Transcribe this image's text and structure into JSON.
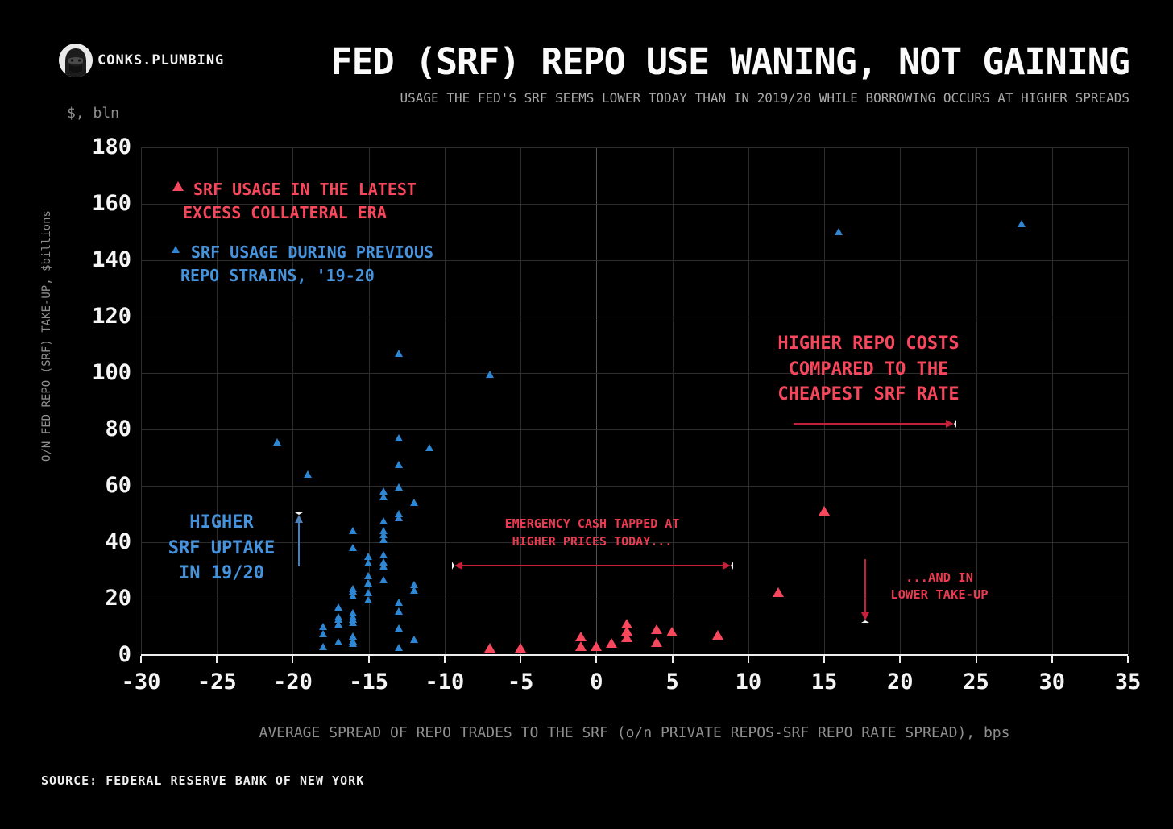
{
  "header": {
    "brand": "CONKS.PLUMBING",
    "title": "FED (SRF) REPO USE WANING, NOT GAINING",
    "subtitle": "USAGE THE FED'S SRF SEEMS LOWER TODAY THAN IN 2019/20 WHILE BORROWING OCCURS AT HIGHER SPREADS"
  },
  "colors": {
    "background": "#000000",
    "red": "#f7475c",
    "blue": "#2e87d4",
    "blue_text": "#4693dd",
    "grid": "#2d2d2d",
    "zero_line": "#555555",
    "axis": "#ededed",
    "muted_text": "#8f8f8f"
  },
  "chart_data": {
    "type": "scatter",
    "title": "FED (SRF) REPO USE WANING, NOT GAINING",
    "subtitle": "USAGE THE FED'S SRF SEEMS LOWER TODAY THAN IN 2019/20 WHILE BORROWING OCCURS AT HIGHER SPREADS",
    "xlabel": "AVERAGE SPREAD OF REPO TRADES TO THE SRF (o/n PRIVATE REPOS-SRF REPO RATE SPREAD), bps",
    "ylabel": "O/N FED REPO (SRF) TAKE-UP, $billions",
    "y_unit_label": "$, bln",
    "xlim": [
      -30,
      35
    ],
    "ylim": [
      0,
      180
    ],
    "x_ticks": [
      -30,
      -25,
      -20,
      -15,
      -10,
      -5,
      0,
      5,
      10,
      15,
      20,
      25,
      30,
      35
    ],
    "y_ticks": [
      0,
      20,
      40,
      60,
      80,
      100,
      120,
      140,
      160,
      180
    ],
    "grid": true,
    "legend_position": "upper-left",
    "series": [
      {
        "name": "SRF USAGE IN THE LATEST EXCESS COLLATERAL ERA",
        "color": "#f7475c",
        "marker": "triangle-up",
        "marker_size": 15,
        "points": [
          [
            -7,
            2.5
          ],
          [
            -5,
            2.5
          ],
          [
            -1,
            6.5
          ],
          [
            -1,
            3
          ],
          [
            0,
            3
          ],
          [
            1,
            4
          ],
          [
            2,
            11
          ],
          [
            2,
            8.5
          ],
          [
            2,
            6
          ],
          [
            4,
            9
          ],
          [
            4,
            4.5
          ],
          [
            5,
            8
          ],
          [
            8,
            7
          ],
          [
            12,
            22
          ],
          [
            15,
            51
          ]
        ]
      },
      {
        "name": "SRF USAGE DURING PREVIOUS REPO STRAINS, '19-20",
        "color": "#2e87d4",
        "marker": "triangle-up",
        "marker_size": 11,
        "points": [
          [
            -21,
            75.5
          ],
          [
            -19,
            64
          ],
          [
            -13,
            107
          ],
          [
            -7,
            99.5
          ],
          [
            16,
            150
          ],
          [
            28,
            153
          ],
          [
            -13,
            77
          ],
          [
            -11,
            73.5
          ],
          [
            -13,
            67.5
          ],
          [
            -14,
            58
          ],
          [
            -14,
            56
          ],
          [
            -13,
            59.5
          ],
          [
            -12,
            54
          ],
          [
            -13,
            50
          ],
          [
            -13,
            48.5
          ],
          [
            -14,
            47.5
          ],
          [
            -16,
            44
          ],
          [
            -14,
            44
          ],
          [
            -14,
            42.5
          ],
          [
            -14,
            41
          ],
          [
            -16,
            38
          ],
          [
            -15,
            35
          ],
          [
            -14,
            35.5
          ],
          [
            -15,
            32.5
          ],
          [
            -14,
            33
          ],
          [
            -14,
            31.5
          ],
          [
            -15,
            28
          ],
          [
            -14,
            26.5
          ],
          [
            -15,
            25.5
          ],
          [
            -16,
            23.5
          ],
          [
            -16,
            22.5
          ],
          [
            -16,
            21
          ],
          [
            -15,
            22
          ],
          [
            -15,
            19.5
          ],
          [
            -12,
            25
          ],
          [
            -12,
            23
          ],
          [
            -13,
            18.5
          ],
          [
            -13,
            15.5
          ],
          [
            -17,
            17
          ],
          [
            -17,
            13.5
          ],
          [
            -17,
            12.5
          ],
          [
            -17,
            11
          ],
          [
            -16,
            15
          ],
          [
            -16,
            13.5
          ],
          [
            -16,
            12.5
          ],
          [
            -16,
            11.5
          ],
          [
            -18,
            10
          ],
          [
            -18,
            7.5
          ],
          [
            -13,
            9.5
          ],
          [
            -12,
            5.5
          ],
          [
            -17,
            4.5
          ],
          [
            -16,
            6.5
          ],
          [
            -16,
            5
          ],
          [
            -16,
            4
          ],
          [
            -18,
            3
          ],
          [
            -13,
            2.5
          ]
        ]
      }
    ]
  },
  "legend": {
    "red": {
      "lines": [
        "SRF USAGE IN THE LATEST",
        "EXCESS COLLATERAL ERA"
      ]
    },
    "blue": {
      "lines": [
        "SRF USAGE DURING PREVIOUS",
        "REPO STRAINS, '19-20"
      ]
    }
  },
  "annotations": {
    "uptake": {
      "lines": [
        "HIGHER",
        "SRF UPTAKE",
        "IN 19/20"
      ]
    },
    "emergency": {
      "lines": [
        "EMERGENCY CASH TAPPED AT",
        "HIGHER PRICES TODAY..."
      ]
    },
    "costs": {
      "lines": [
        "HIGHER REPO COSTS",
        "COMPARED TO THE",
        "CHEAPEST SRF RATE"
      ]
    },
    "takeup": {
      "lines": [
        "...AND IN",
        "LOWER TAKE-UP"
      ]
    }
  },
  "footer": {
    "source": "SOURCE: FEDERAL RESERVE BANK OF NEW YORK"
  }
}
